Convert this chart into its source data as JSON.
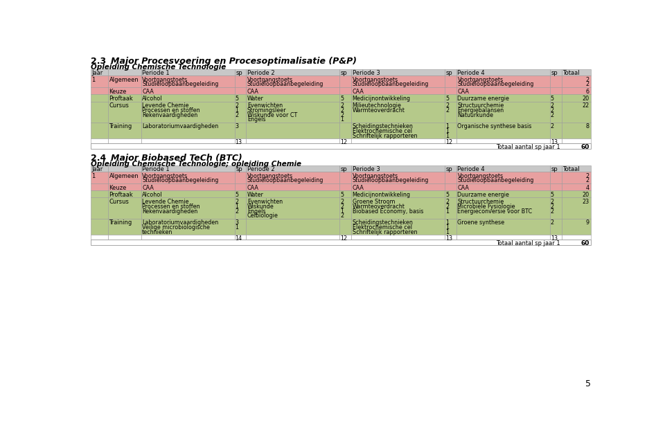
{
  "title1_num": "2.3",
  "title1_text": "Major Procesvoering en Procesoptimalisatie (P&P)",
  "subtitle1": "Opleiding Chemische Technologie",
  "title2_num": "2.4",
  "title2_text": "Major Biobased TeCh (BTC)",
  "subtitle2": "Opleiding Chemische Technologie; opleiding Chemie",
  "page_num": "5",
  "colors": {
    "pink": "#e8a0a0",
    "green": "#b5c98a",
    "header": "#c8c8c8",
    "white": "#ffffff",
    "border": "#999999",
    "black": "#000000"
  },
  "table1": {
    "totals_row": [
      "13",
      "12",
      "12",
      "13"
    ],
    "grand_total": "60",
    "rows": [
      {
        "jaar": "1",
        "type": "Algemeen",
        "bg": "pink",
        "p1": [
          "Voortgangstoets",
          "Studieloopbaanbegeleiding"
        ],
        "sp1": [
          "",
          ""
        ],
        "p2": [
          "Voortgangstoets",
          "Studieloopbaanbegeleiding"
        ],
        "sp2": [
          "",
          ""
        ],
        "p3": [
          "Voortgangstoets",
          "Studieloopbaanbegeleiding"
        ],
        "sp3": [
          "",
          ""
        ],
        "p4": [
          "Voortgangstoets",
          "Studieloopbaanbegeleiding"
        ],
        "sp4": [
          "",
          ""
        ],
        "tot": [
          "2",
          "2"
        ]
      },
      {
        "jaar": "",
        "type": "Keuze",
        "bg": "pink",
        "p1": [
          "CAA"
        ],
        "sp1": [
          ""
        ],
        "p2": [
          "CAA"
        ],
        "sp2": [
          ""
        ],
        "p3": [
          "CAA"
        ],
        "sp3": [
          ""
        ],
        "p4": [
          "CAA"
        ],
        "sp4": [
          ""
        ],
        "tot": [
          "6"
        ]
      },
      {
        "jaar": "",
        "type": "Proftaak",
        "bg": "green",
        "p1": [
          "Alcohol"
        ],
        "sp1": [
          "5"
        ],
        "p2": [
          "Water"
        ],
        "sp2": [
          "5"
        ],
        "p3": [
          "Medicijnontwikkeling"
        ],
        "sp3": [
          "5"
        ],
        "p4": [
          "Duurzame energie"
        ],
        "sp4": [
          "5"
        ],
        "tot": [
          "20"
        ]
      },
      {
        "jaar": "",
        "type": "Cursus",
        "bg": "green",
        "p1": [
          "Levende Chemie",
          "Processen en stoffen",
          "Rekenvaardigheden"
        ],
        "sp1": [
          "2",
          "1",
          "2"
        ],
        "p2": [
          "Evenwichten",
          "Stromingsleer",
          "Wiskunde voor CT",
          "Engels"
        ],
        "sp2": [
          "2",
          "2",
          "2",
          "1"
        ],
        "p3": [
          "Milieutechnologie",
          "Warmteoverdracht"
        ],
        "sp3": [
          "2",
          "2"
        ],
        "p4": [
          "Structuurchemie",
          "Energiebalansen",
          "Natuurkunde"
        ],
        "sp4": [
          "2",
          "2",
          "2"
        ],
        "tot": [
          "22"
        ]
      },
      {
        "jaar": "",
        "type": "Training",
        "bg": "green",
        "p1": [
          "Laboratoriumvaardigheden"
        ],
        "sp1": [
          "3"
        ],
        "p2": [],
        "sp2": [],
        "p3": [
          "Scheidingstechnieken",
          "Elektrochemische cel",
          "Schriftelijk rapporteren"
        ],
        "sp3": [
          "1",
          "1",
          "1"
        ],
        "p4": [
          "Organische synthese basis"
        ],
        "sp4": [
          "2"
        ],
        "tot": [
          "8"
        ]
      }
    ]
  },
  "table2": {
    "totals_row": [
      "14",
      "12",
      "13",
      "13"
    ],
    "grand_total": "60",
    "rows": [
      {
        "jaar": "1",
        "type": "Algemeen",
        "bg": "pink",
        "p1": [
          "Voortgangstoets",
          "Studieloopbaanbegeleiding"
        ],
        "sp1": [
          "",
          ""
        ],
        "p2": [
          "Voortgangstoets",
          "Studieloopbaanbegeleiding"
        ],
        "sp2": [
          "",
          ""
        ],
        "p3": [
          "Voortgangstoets",
          "Studieloopbaanbegeleiding"
        ],
        "sp3": [
          "",
          ""
        ],
        "p4": [
          "Voortgangstoets",
          "Studieloopbaanbegeleiding"
        ],
        "sp4": [
          "",
          ""
        ],
        "tot": [
          "2",
          "2"
        ]
      },
      {
        "jaar": "",
        "type": "Keuze",
        "bg": "pink",
        "p1": [
          "CAA"
        ],
        "sp1": [
          ""
        ],
        "p2": [
          "CAA"
        ],
        "sp2": [
          ""
        ],
        "p3": [
          "CAA"
        ],
        "sp3": [
          ""
        ],
        "p4": [
          "CAA"
        ],
        "sp4": [
          ""
        ],
        "tot": [
          "4"
        ]
      },
      {
        "jaar": "",
        "type": "Proftaak",
        "bg": "green",
        "p1": [
          "Alcohol"
        ],
        "sp1": [
          "5"
        ],
        "p2": [
          "Water"
        ],
        "sp2": [
          "5"
        ],
        "p3": [
          "Medicijnontwikkeling"
        ],
        "sp3": [
          "5"
        ],
        "p4": [
          "Duurzame energie"
        ],
        "sp4": [
          "5"
        ],
        "tot": [
          "20"
        ]
      },
      {
        "jaar": "",
        "type": "Cursus",
        "bg": "green",
        "p1": [
          "Levende Chemie",
          "Processen en stoffen",
          "Rekenvaardigheden"
        ],
        "sp1": [
          "2",
          "1",
          "2"
        ],
        "p2": [
          "Evenwichten",
          "Wiskunde",
          "Engels",
          "Celbiologie"
        ],
        "sp2": [
          "2",
          "2",
          "1",
          "2"
        ],
        "p3": [
          "Groene Stroom",
          "Warmteoverdracht",
          "Biobased Economy, basis"
        ],
        "sp3": [
          "2",
          "2",
          "1"
        ],
        "p4": [
          "Structuurchemie",
          "Microbiële Fysiologie",
          "Energieconversie voor BTC"
        ],
        "sp4": [
          "2",
          "2",
          "2"
        ],
        "tot": [
          "23"
        ]
      },
      {
        "jaar": "",
        "type": "Training",
        "bg": "green",
        "p1": [
          "Laboratoriumvaardigheden",
          "Veilige microbiologische",
          "technieken"
        ],
        "sp1": [
          "3",
          "1",
          ""
        ],
        "p2": [],
        "sp2": [],
        "p3": [
          "Scheidingstechnieken",
          "Elektrochemische cel",
          "Schriftelijk rapporteren"
        ],
        "sp3": [
          "1",
          "1",
          "1"
        ],
        "p4": [
          "Groene synthese"
        ],
        "sp4": [
          "2"
        ],
        "tot": [
          "9"
        ]
      }
    ]
  }
}
